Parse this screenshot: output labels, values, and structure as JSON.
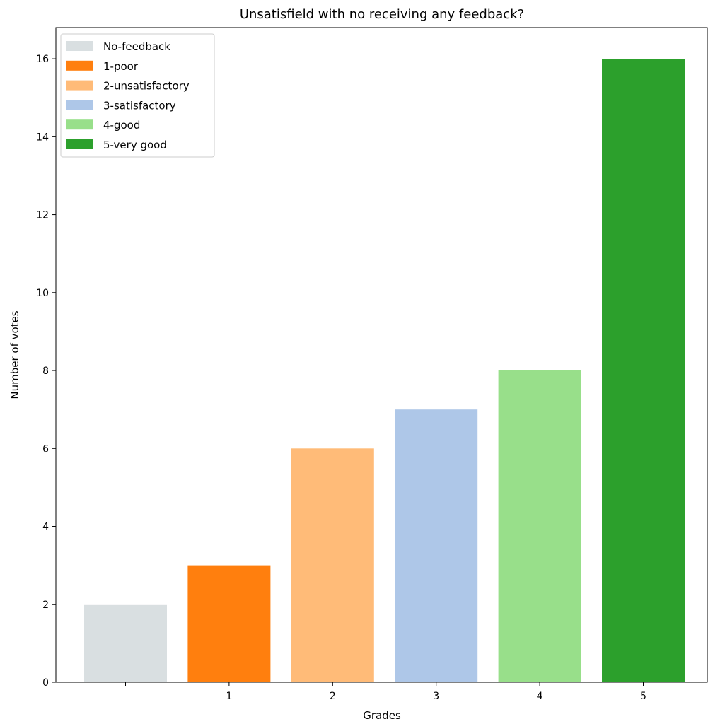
{
  "chart_data": {
    "type": "bar",
    "title": "Unsatisfield with no receiving any feedback?",
    "xlabel": "Grades",
    "ylabel": "Number of votes",
    "categories": [
      "",
      "1",
      "2",
      "3",
      "4",
      "5"
    ],
    "values": [
      2,
      3,
      6,
      7,
      8,
      16
    ],
    "colors": [
      "#d9dfe1",
      "#ff7f0e",
      "#ffbb78",
      "#aec7e8",
      "#98df8a",
      "#2ca02c"
    ],
    "ylim": [
      0,
      16.8
    ],
    "yticks": [
      0,
      2,
      4,
      6,
      8,
      10,
      12,
      14,
      16
    ],
    "grid": false,
    "legend": {
      "position": "top-left",
      "entries": [
        "No-feedback",
        "1-poor",
        "2-unsatisfactory",
        "3-satisfactory",
        "4-good",
        "5-very good"
      ]
    }
  }
}
